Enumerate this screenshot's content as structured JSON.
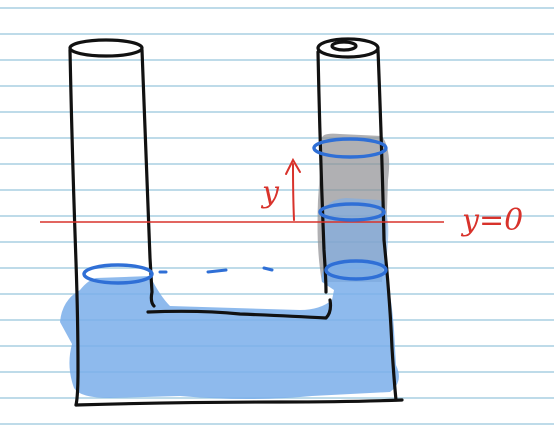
{
  "colors": {
    "paper": "#ffffff",
    "rule_line": "#a9cfe2",
    "ink": "#111111",
    "water": "#7aaeea",
    "water_shadow": "#8e8e93",
    "ring": "#2f6fd6",
    "annotation": "#d8322b"
  },
  "labels": {
    "displacement": "y",
    "reference": "y=0"
  }
}
